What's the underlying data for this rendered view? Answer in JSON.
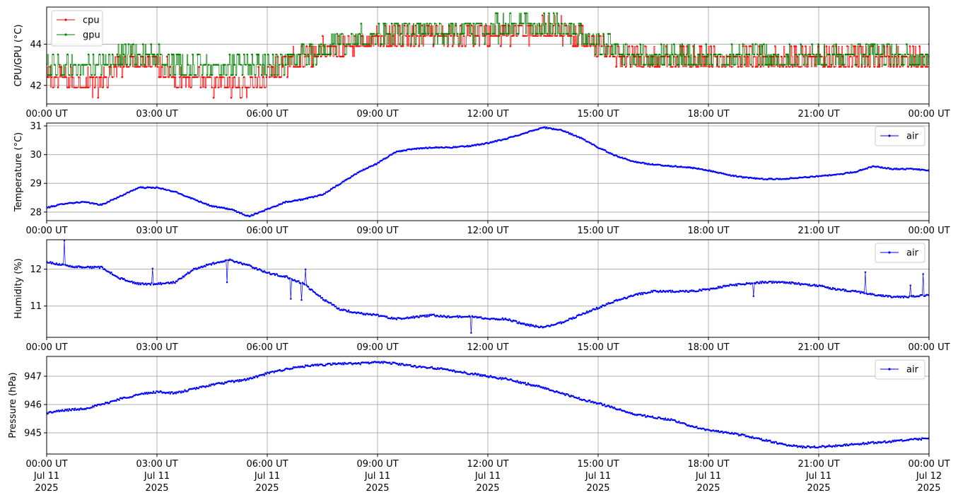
{
  "figure": {
    "x_tick_labels": [
      "00:00 UT",
      "03:00 UT",
      "06:00 UT",
      "09:00 UT",
      "12:00 UT",
      "15:00 UT",
      "18:00 UT",
      "21:00 UT",
      "00:00 UT"
    ],
    "x_tick_dates": [
      "Jul 11\n2025",
      "Jul 11\n2025",
      "Jul 11\n2025",
      "Jul 11\n2025",
      "Jul 11\n2025",
      "Jul 11\n2025",
      "Jul 11\n2025",
      "Jul 11\n2025",
      "Jul 12\n2025"
    ],
    "grid": true
  },
  "chart_data": [
    {
      "type": "line",
      "ylabel": "CPU/GPU (°C)",
      "xlim": [
        "2025-07-11T00:00",
        "2025-07-12T00:00"
      ],
      "ylim": [
        41.1,
        45.8
      ],
      "yticks": [
        42,
        44
      ],
      "legend": "top-left",
      "series": [
        {
          "name": "cpu",
          "color": "#ff0000",
          "x_hours": [
            0,
            0.5,
            1,
            1.5,
            2,
            2.5,
            3,
            3.5,
            4,
            4.5,
            5,
            5.5,
            6,
            6.5,
            7,
            7.5,
            8,
            8.5,
            9,
            9.5,
            10,
            10.5,
            11,
            11.5,
            12,
            12.5,
            13,
            13.5,
            14,
            14.5,
            15,
            15.5,
            16,
            16.5,
            17,
            17.5,
            18,
            18.5,
            19,
            19.5,
            20,
            20.5,
            21,
            21.5,
            22,
            22.5,
            23,
            23.5,
            24
          ],
          "values": [
            42.4,
            42.4,
            42.3,
            42.2,
            43.2,
            43.4,
            43.2,
            42.5,
            42.3,
            42.2,
            42.0,
            42.2,
            42.5,
            43.2,
            43.4,
            43.8,
            44.0,
            44.2,
            44.3,
            44.4,
            44.5,
            44.5,
            44.5,
            44.6,
            44.6,
            44.6,
            44.7,
            44.8,
            44.8,
            44.4,
            44.0,
            43.5,
            43.3,
            43.3,
            43.4,
            43.4,
            43.3,
            43.3,
            43.4,
            43.4,
            43.3,
            43.3,
            43.4,
            43.3,
            43.4,
            43.5,
            43.4,
            43.3,
            43.3
          ]
        },
        {
          "name": "gpu",
          "color": "#008000",
          "x_hours": [
            0,
            0.5,
            1,
            1.5,
            2,
            2.5,
            3,
            3.5,
            4,
            4.5,
            5,
            5.5,
            6,
            6.5,
            7,
            7.5,
            8,
            8.5,
            9,
            9.5,
            10,
            10.5,
            11,
            11.5,
            12,
            12.5,
            13,
            13.5,
            14,
            14.5,
            15,
            15.5,
            16,
            16.5,
            17,
            17.5,
            18,
            18.5,
            19,
            19.5,
            20,
            20.5,
            21,
            21.5,
            22,
            22.5,
            23,
            23.5,
            24
          ],
          "values": [
            42.9,
            42.9,
            42.9,
            43.0,
            43.4,
            43.6,
            43.3,
            42.9,
            42.9,
            42.9,
            42.9,
            42.9,
            42.9,
            43.2,
            43.4,
            43.6,
            44.1,
            44.3,
            44.3,
            44.4,
            44.6,
            44.6,
            44.6,
            44.7,
            44.7,
            44.8,
            44.9,
            44.9,
            44.9,
            44.5,
            44.0,
            43.6,
            43.4,
            43.4,
            43.4,
            43.4,
            43.3,
            43.3,
            43.4,
            43.4,
            43.3,
            43.3,
            43.3,
            43.3,
            43.5,
            43.6,
            43.4,
            43.3,
            43.3
          ]
        }
      ]
    },
    {
      "type": "line",
      "ylabel": "Temperature (°C)",
      "xlim": [
        "2025-07-11T00:00",
        "2025-07-12T00:00"
      ],
      "ylim": [
        27.7,
        31.1
      ],
      "yticks": [
        28,
        29,
        30,
        31
      ],
      "legend": "top-right",
      "series": [
        {
          "name": "air",
          "color": "#0000ff",
          "x_hours": [
            0,
            0.5,
            1,
            1.5,
            2,
            2.5,
            3,
            3.5,
            4,
            4.5,
            5,
            5.5,
            6,
            6.5,
            7,
            7.5,
            8,
            8.5,
            9,
            9.5,
            10,
            10.5,
            11,
            11.5,
            12,
            12.5,
            13,
            13.5,
            14,
            14.5,
            15,
            15.5,
            16,
            16.5,
            17,
            17.5,
            18,
            18.5,
            19,
            19.5,
            20,
            20.5,
            21,
            21.5,
            22,
            22.5,
            23,
            23.5,
            24
          ],
          "values": [
            28.15,
            28.3,
            28.35,
            28.25,
            28.55,
            28.85,
            28.85,
            28.7,
            28.45,
            28.2,
            28.1,
            27.85,
            28.1,
            28.35,
            28.45,
            28.6,
            29.0,
            29.4,
            29.7,
            30.1,
            30.2,
            30.25,
            30.25,
            30.3,
            30.4,
            30.55,
            30.75,
            30.95,
            30.85,
            30.6,
            30.25,
            29.95,
            29.75,
            29.65,
            29.6,
            29.55,
            29.45,
            29.3,
            29.2,
            29.15,
            29.15,
            29.2,
            29.25,
            29.3,
            29.4,
            29.6,
            29.5,
            29.5,
            29.45
          ]
        }
      ]
    },
    {
      "type": "line",
      "ylabel": "Humidity (%)",
      "xlim": [
        "2025-07-11T00:00",
        "2025-07-12T00:00"
      ],
      "ylim": [
        10.15,
        12.8
      ],
      "yticks": [
        11,
        12
      ],
      "legend": "top-right",
      "series": [
        {
          "name": "air",
          "color": "#0000ff",
          "x_hours": [
            0,
            0.5,
            1,
            1.5,
            2,
            2.5,
            3,
            3.5,
            4,
            4.5,
            5,
            5.5,
            6,
            6.5,
            7,
            7.5,
            8,
            8.5,
            9,
            9.5,
            10,
            10.5,
            11,
            11.5,
            12,
            12.5,
            13,
            13.5,
            14,
            14.5,
            15,
            15.5,
            16,
            16.5,
            17,
            17.5,
            18,
            18.5,
            19,
            19.5,
            20,
            20.5,
            21,
            21.5,
            22,
            22.5,
            23,
            23.5,
            24
          ],
          "values": [
            12.2,
            12.1,
            12.05,
            12.05,
            11.75,
            11.6,
            11.6,
            11.65,
            12.0,
            12.15,
            12.25,
            12.1,
            11.9,
            11.8,
            11.6,
            11.2,
            10.9,
            10.8,
            10.75,
            10.65,
            10.7,
            10.75,
            10.7,
            10.72,
            10.65,
            10.65,
            10.5,
            10.42,
            10.55,
            10.75,
            10.95,
            11.15,
            11.3,
            11.4,
            11.4,
            11.4,
            11.45,
            11.55,
            11.6,
            11.65,
            11.65,
            11.6,
            11.55,
            11.45,
            11.4,
            11.3,
            11.25,
            11.25,
            11.3
          ]
        }
      ]
    },
    {
      "type": "line",
      "ylabel": "Pressure (hPa)",
      "xlim": [
        "2025-07-11T00:00",
        "2025-07-12T00:00"
      ],
      "ylim": [
        944.25,
        947.7
      ],
      "yticks": [
        945,
        946,
        947
      ],
      "legend": "top-right",
      "series": [
        {
          "name": "air",
          "color": "#0000ff",
          "x_hours": [
            0,
            0.5,
            1,
            1.5,
            2,
            2.5,
            3,
            3.5,
            4,
            4.5,
            5,
            5.5,
            6,
            6.5,
            7,
            7.5,
            8,
            8.5,
            9,
            9.5,
            10,
            10.5,
            11,
            11.5,
            12,
            12.5,
            13,
            13.5,
            14,
            14.5,
            15,
            15.5,
            16,
            16.5,
            17,
            17.5,
            18,
            18.5,
            19,
            19.5,
            20,
            20.5,
            21,
            21.5,
            22,
            22.5,
            23,
            23.5,
            24
          ],
          "values": [
            945.7,
            945.8,
            945.85,
            946.0,
            946.2,
            946.35,
            946.45,
            946.4,
            946.55,
            946.7,
            946.8,
            946.9,
            947.1,
            947.25,
            947.35,
            947.4,
            947.45,
            947.45,
            947.5,
            947.45,
            947.35,
            947.3,
            947.2,
            947.1,
            947.0,
            946.9,
            946.75,
            946.6,
            946.4,
            946.2,
            946.05,
            945.85,
            945.65,
            945.55,
            945.45,
            945.25,
            945.1,
            945.0,
            944.9,
            944.75,
            944.6,
            944.5,
            944.5,
            944.55,
            944.6,
            944.65,
            944.7,
            944.75,
            944.8
          ]
        }
      ]
    }
  ]
}
